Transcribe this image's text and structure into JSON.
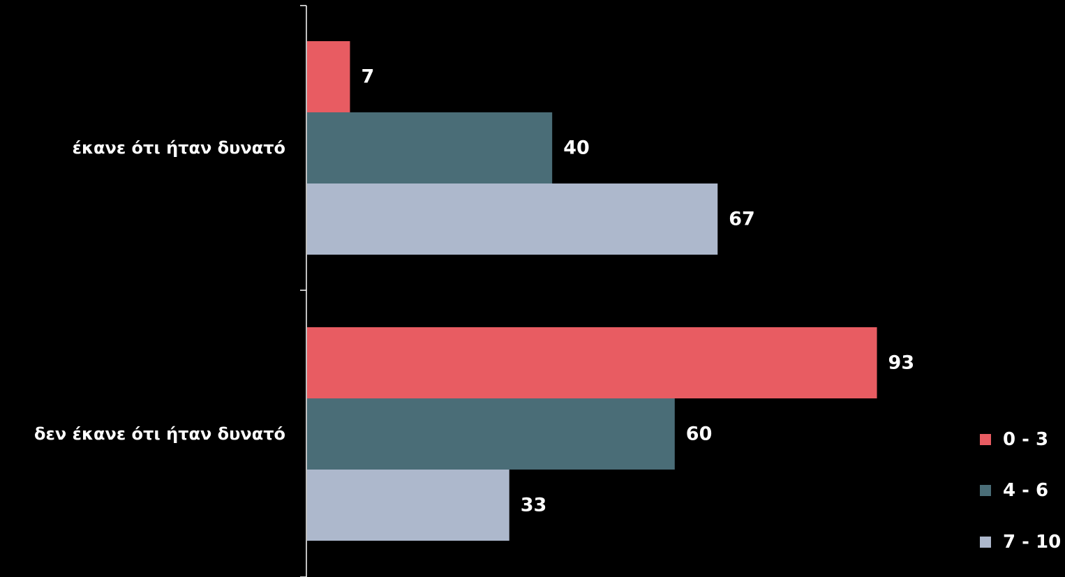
{
  "chart_data": {
    "type": "bar",
    "orientation": "horizontal",
    "categories": [
      "έκανε ότι ήταν δυνατό",
      "δεν έκανε ότι ήταν δυνατό"
    ],
    "series": [
      {
        "name": "0 - 3",
        "color": "#e85c62",
        "values": [
          7,
          93
        ]
      },
      {
        "name": "4 - 6",
        "color": "#4a6d77",
        "values": [
          40,
          60
        ]
      },
      {
        "name": "7 - 10",
        "color": "#adb8cc",
        "values": [
          67,
          33
        ]
      }
    ],
    "xlim": [
      0,
      100
    ],
    "grid": false,
    "legend_position": "bottom-right"
  }
}
